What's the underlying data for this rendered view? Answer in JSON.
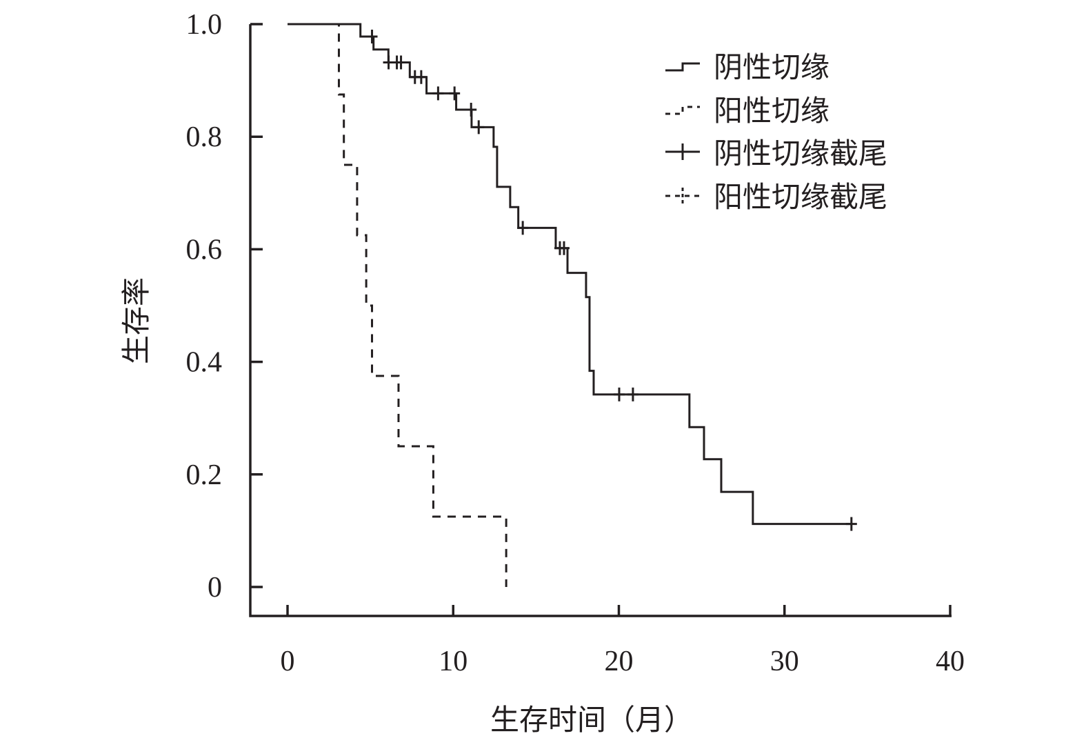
{
  "chart_data": {
    "type": "line",
    "subtype": "kaplan-meier step",
    "title": "",
    "xlabel": "生存时间（月）",
    "ylabel": "生存率",
    "xlim": [
      0,
      40
    ],
    "ylim": [
      0,
      1.0
    ],
    "xticks": [
      "0",
      "10",
      "20",
      "30",
      "40"
    ],
    "yticks": [
      "0",
      "0.2",
      "0.4",
      "0.6",
      "0.8",
      "1.0"
    ],
    "grid": false,
    "legend_position": "top-right",
    "line_color": "#231f20",
    "series": [
      {
        "name": "阴性切缘",
        "style": "solid",
        "steps": [
          [
            0,
            1.0
          ],
          [
            4.4,
            0.978
          ],
          [
            5.19,
            0.955
          ],
          [
            6.09,
            0.932
          ],
          [
            7.38,
            0.906
          ],
          [
            8.39,
            0.877
          ],
          [
            10.18,
            0.848
          ],
          [
            11.11,
            0.817
          ],
          [
            12.44,
            0.782
          ],
          [
            12.65,
            0.711
          ],
          [
            13.44,
            0.675
          ],
          [
            13.93,
            0.638
          ],
          [
            16.19,
            0.602
          ],
          [
            16.9,
            0.558
          ],
          [
            18.02,
            0.515
          ],
          [
            18.23,
            0.384
          ],
          [
            18.48,
            0.342
          ],
          [
            24.26,
            0.284
          ],
          [
            25.14,
            0.227
          ],
          [
            26.18,
            0.169
          ],
          [
            28.09,
            0.112
          ]
        ],
        "end_time": 34.04,
        "censored_times": [
          5.1,
          6.1,
          6.6,
          6.85,
          7.69,
          8.07,
          9.09,
          10.08,
          11.08,
          11.54,
          14.2,
          16.44,
          16.69,
          20.02,
          20.85,
          34.04
        ]
      },
      {
        "name": "阳性切缘",
        "style": "dashed",
        "steps": [
          [
            0,
            1.0
          ],
          [
            3.1,
            0.875
          ],
          [
            3.4,
            0.75
          ],
          [
            4.2,
            0.625
          ],
          [
            4.75,
            0.5
          ],
          [
            5.1,
            0.375
          ],
          [
            6.7,
            0.25
          ],
          [
            8.8,
            0.125
          ],
          [
            13.2,
            0.0
          ]
        ],
        "end_time": 13.2,
        "censored_times": []
      }
    ],
    "legend": [
      {
        "label": "阴性切缘",
        "symbol": "solid-step"
      },
      {
        "label": "阳性切缘",
        "symbol": "dashed-step"
      },
      {
        "label": "阴性切缘截尾",
        "symbol": "solid-censor"
      },
      {
        "label": "阳性切缘截尾",
        "symbol": "dashed-censor"
      }
    ]
  }
}
